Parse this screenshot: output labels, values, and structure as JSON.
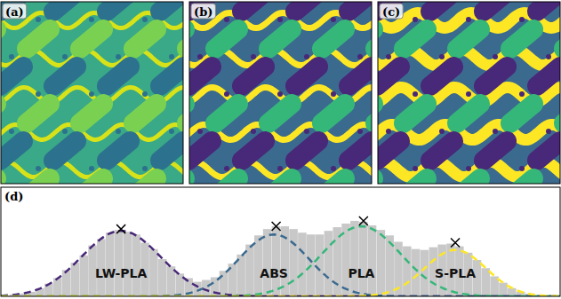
{
  "panels": [
    {
      "label": "(a)"
    },
    {
      "label": "(b)"
    },
    {
      "label": "(c)"
    }
  ],
  "chart_data": {
    "type": "histogram",
    "label": "(d)",
    "color": "#c8c8c8",
    "xlim": [
      0,
      256
    ],
    "ylim": [
      0,
      120
    ],
    "tick_labels": false,
    "bins": [
      0,
      4,
      8,
      12,
      16,
      20,
      24,
      28,
      32,
      36,
      40,
      44,
      48,
      52,
      56,
      60,
      64,
      68,
      72,
      76,
      80,
      84,
      88,
      92,
      96,
      100,
      104,
      108,
      112,
      116,
      120,
      124,
      128,
      132,
      136,
      140,
      144,
      148,
      152,
      156,
      160,
      164,
      168,
      172,
      176,
      180,
      184,
      188,
      192,
      196,
      200,
      204,
      208,
      212,
      216,
      220,
      224,
      228,
      232,
      236,
      240,
      244,
      248,
      252,
      256
    ],
    "counts": [
      1,
      2,
      3,
      5,
      9,
      14,
      20,
      29,
      37,
      45,
      56,
      63,
      70,
      73,
      71,
      68,
      59,
      52,
      41,
      33,
      25,
      20,
      16,
      18,
      21,
      28,
      36,
      46,
      57,
      67,
      74,
      77,
      77,
      74,
      70,
      68,
      68,
      72,
      76,
      80,
      83,
      82,
      78,
      73,
      67,
      60,
      55,
      52,
      51,
      54,
      57,
      58,
      55,
      48,
      40,
      31,
      22,
      15,
      9,
      5,
      3,
      1,
      0,
      0
    ],
    "series": [
      {
        "name": "LW-PLA",
        "color": "#482878",
        "type": "line",
        "line_style": "dashed",
        "marker": "x",
        "mean": 55,
        "std": 18,
        "amplitude": 72,
        "peak": {
          "x": 55,
          "y": 74
        }
      },
      {
        "name": "ABS",
        "color": "#3b6a8f",
        "type": "line",
        "line_style": "dashed",
        "marker": "x",
        "mean": 125,
        "std": 16,
        "amplitude": 68,
        "peak": {
          "x": 126,
          "y": 77
        }
      },
      {
        "name": "PLA",
        "color": "#35b779",
        "type": "line",
        "line_style": "dashed",
        "marker": "x",
        "mean": 165,
        "std": 18,
        "amplitude": 77,
        "peak": {
          "x": 166,
          "y": 83
        }
      },
      {
        "name": "S-PLA",
        "color": "#fde725",
        "type": "line",
        "line_style": "dashed",
        "marker": "x",
        "mean": 208,
        "std": 14,
        "amplitude": 51,
        "peak": {
          "x": 208,
          "y": 59
        }
      }
    ]
  }
}
